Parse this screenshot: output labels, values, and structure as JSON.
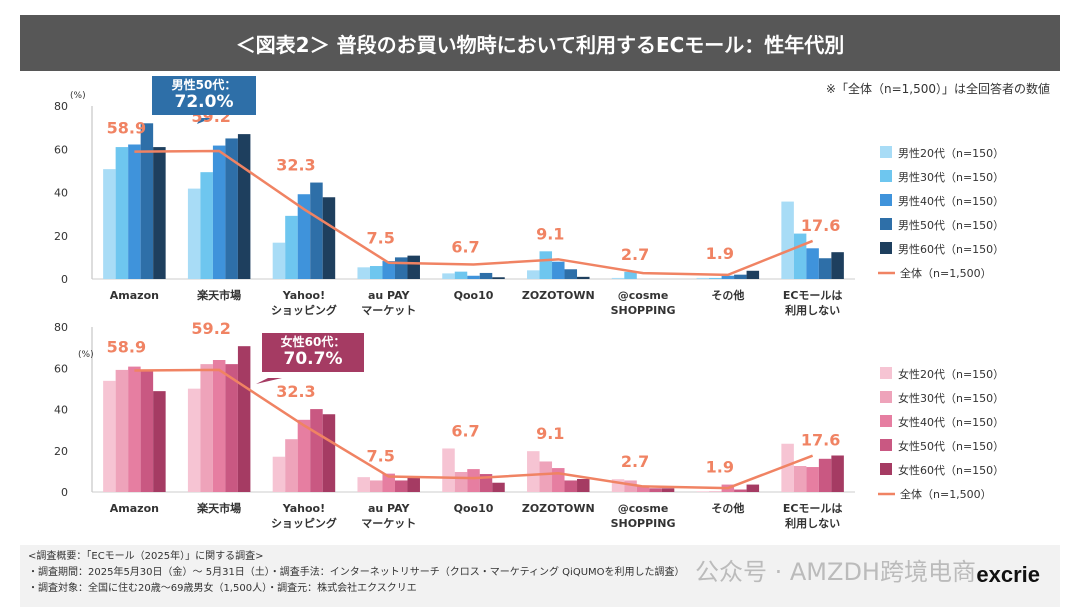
{
  "title": "＜図表2＞ 普段のお買い物時において利用するECモール：性年代別",
  "note": "※「全体（n=1,500）」は全回答者の数値",
  "unit_label": "(%)",
  "colors": {
    "male": [
      "#a8dcf6",
      "#6ec6ef",
      "#3f93db",
      "#2e6fa8",
      "#1e3f5e"
    ],
    "female": [
      "#f6c4d3",
      "#eea3ba",
      "#e67ea1",
      "#c95882",
      "#a53b63"
    ],
    "total_line": "#f08363",
    "male_callout": "#2e6fa8",
    "female_callout": "#a53b63"
  },
  "callouts": {
    "male": {
      "label": "男性50代：",
      "value": "72.0%"
    },
    "female": {
      "label": "女性60代：",
      "value": "70.7%"
    }
  },
  "chart_data": [
    {
      "type": "bar",
      "categories": [
        "Amazon",
        "楽天市場",
        "Yahoo!\nショッピング",
        "au PAY\nマーケット",
        "Qoo10",
        "ZOZOTOWN",
        "@cosme\nSHOPPING",
        "その他",
        "ECモールは\n利用しない"
      ],
      "ylim": [
        0,
        80
      ],
      "yticks": [
        0,
        20,
        40,
        60,
        80
      ],
      "legend_position": "right",
      "series": [
        {
          "name": "男性20代（n=150）",
          "values": [
            50.8,
            41.8,
            16.8,
            5.4,
            2.6,
            4.0,
            0.5,
            0.5,
            35.8
          ]
        },
        {
          "name": "男性30代（n=150）",
          "values": [
            61.0,
            49.4,
            29.2,
            6.0,
            3.4,
            12.8,
            3.3,
            0.5,
            21.0
          ]
        },
        {
          "name": "男性40代（n=150）",
          "values": [
            62.2,
            61.7,
            39.2,
            8.3,
            1.5,
            8.0,
            0.0,
            1.5,
            14.2
          ]
        },
        {
          "name": "男性50代（n=150）",
          "values": [
            72.0,
            65.0,
            44.6,
            10.0,
            2.8,
            4.5,
            0.0,
            2.0,
            9.6
          ]
        },
        {
          "name": "男性60代（n=150）",
          "values": [
            61.0,
            67.0,
            37.8,
            10.8,
            0.8,
            1.0,
            0.0,
            3.8,
            12.4
          ]
        }
      ],
      "line": {
        "name": "全体（n=1,500）",
        "values": [
          58.9,
          59.2,
          32.3,
          7.5,
          6.7,
          9.1,
          2.7,
          1.9,
          17.6
        ],
        "labels": [
          "58.9",
          "59.2",
          "32.3",
          "7.5",
          "6.7",
          "9.1",
          "2.7",
          "1.9",
          "17.6"
        ]
      }
    },
    {
      "type": "bar",
      "categories": [
        "Amazon",
        "楽天市場",
        "Yahoo!\nショッピング",
        "au PAY\nマーケット",
        "Qoo10",
        "ZOZOTOWN",
        "@cosme\nSHOPPING",
        "その他",
        "ECモールは\n利用しない"
      ],
      "ylim": [
        0,
        80
      ],
      "yticks": [
        0,
        20,
        40,
        60,
        80
      ],
      "legend_position": "right",
      "series": [
        {
          "name": "女性20代（n=150）",
          "values": [
            53.9,
            50.1,
            17.1,
            7.2,
            21.1,
            19.8,
            6.2,
            0.3,
            23.4
          ]
        },
        {
          "name": "女性30代（n=150）",
          "values": [
            59.2,
            62.0,
            25.6,
            5.6,
            9.7,
            14.8,
            5.6,
            0.3,
            12.6
          ]
        },
        {
          "name": "女性40代（n=150）",
          "values": [
            60.8,
            64.0,
            35.0,
            8.9,
            11.1,
            11.6,
            2.9,
            3.6,
            12.1
          ]
        },
        {
          "name": "女性50代（n=150）",
          "values": [
            59.2,
            62.0,
            40.2,
            5.6,
            8.7,
            5.6,
            1.8,
            1.2,
            16.1
          ]
        },
        {
          "name": "女性60代（n=150）",
          "values": [
            48.9,
            70.7,
            37.7,
            7.2,
            4.5,
            6.3,
            1.8,
            3.6,
            17.7
          ]
        }
      ],
      "line": {
        "name": "全体（n=1,500）",
        "values": [
          58.9,
          59.2,
          32.3,
          7.5,
          6.7,
          9.1,
          2.7,
          1.9,
          17.6
        ],
        "labels": [
          "58.9",
          "59.2",
          "32.3",
          "7.5",
          "6.7",
          "9.1",
          "2.7",
          "1.9",
          "17.6"
        ]
      }
    }
  ],
  "footer": {
    "line1": "<調査概要：「ECモール（2025年）」に関する調査>",
    "line2": "・調査期間：2025年5月30日（金）～ 5月31日（土）・調査手法：インターネットリサーチ（クロス・マーケティング QiQUMOを利用した調査）",
    "line3": "・調査対象：全国に住む20歳～69歳男女（1,500人）・調査元：株式会社エクスクリエ"
  },
  "logo": "excrie",
  "watermark": "公众号 · AMZDH跨境电商"
}
